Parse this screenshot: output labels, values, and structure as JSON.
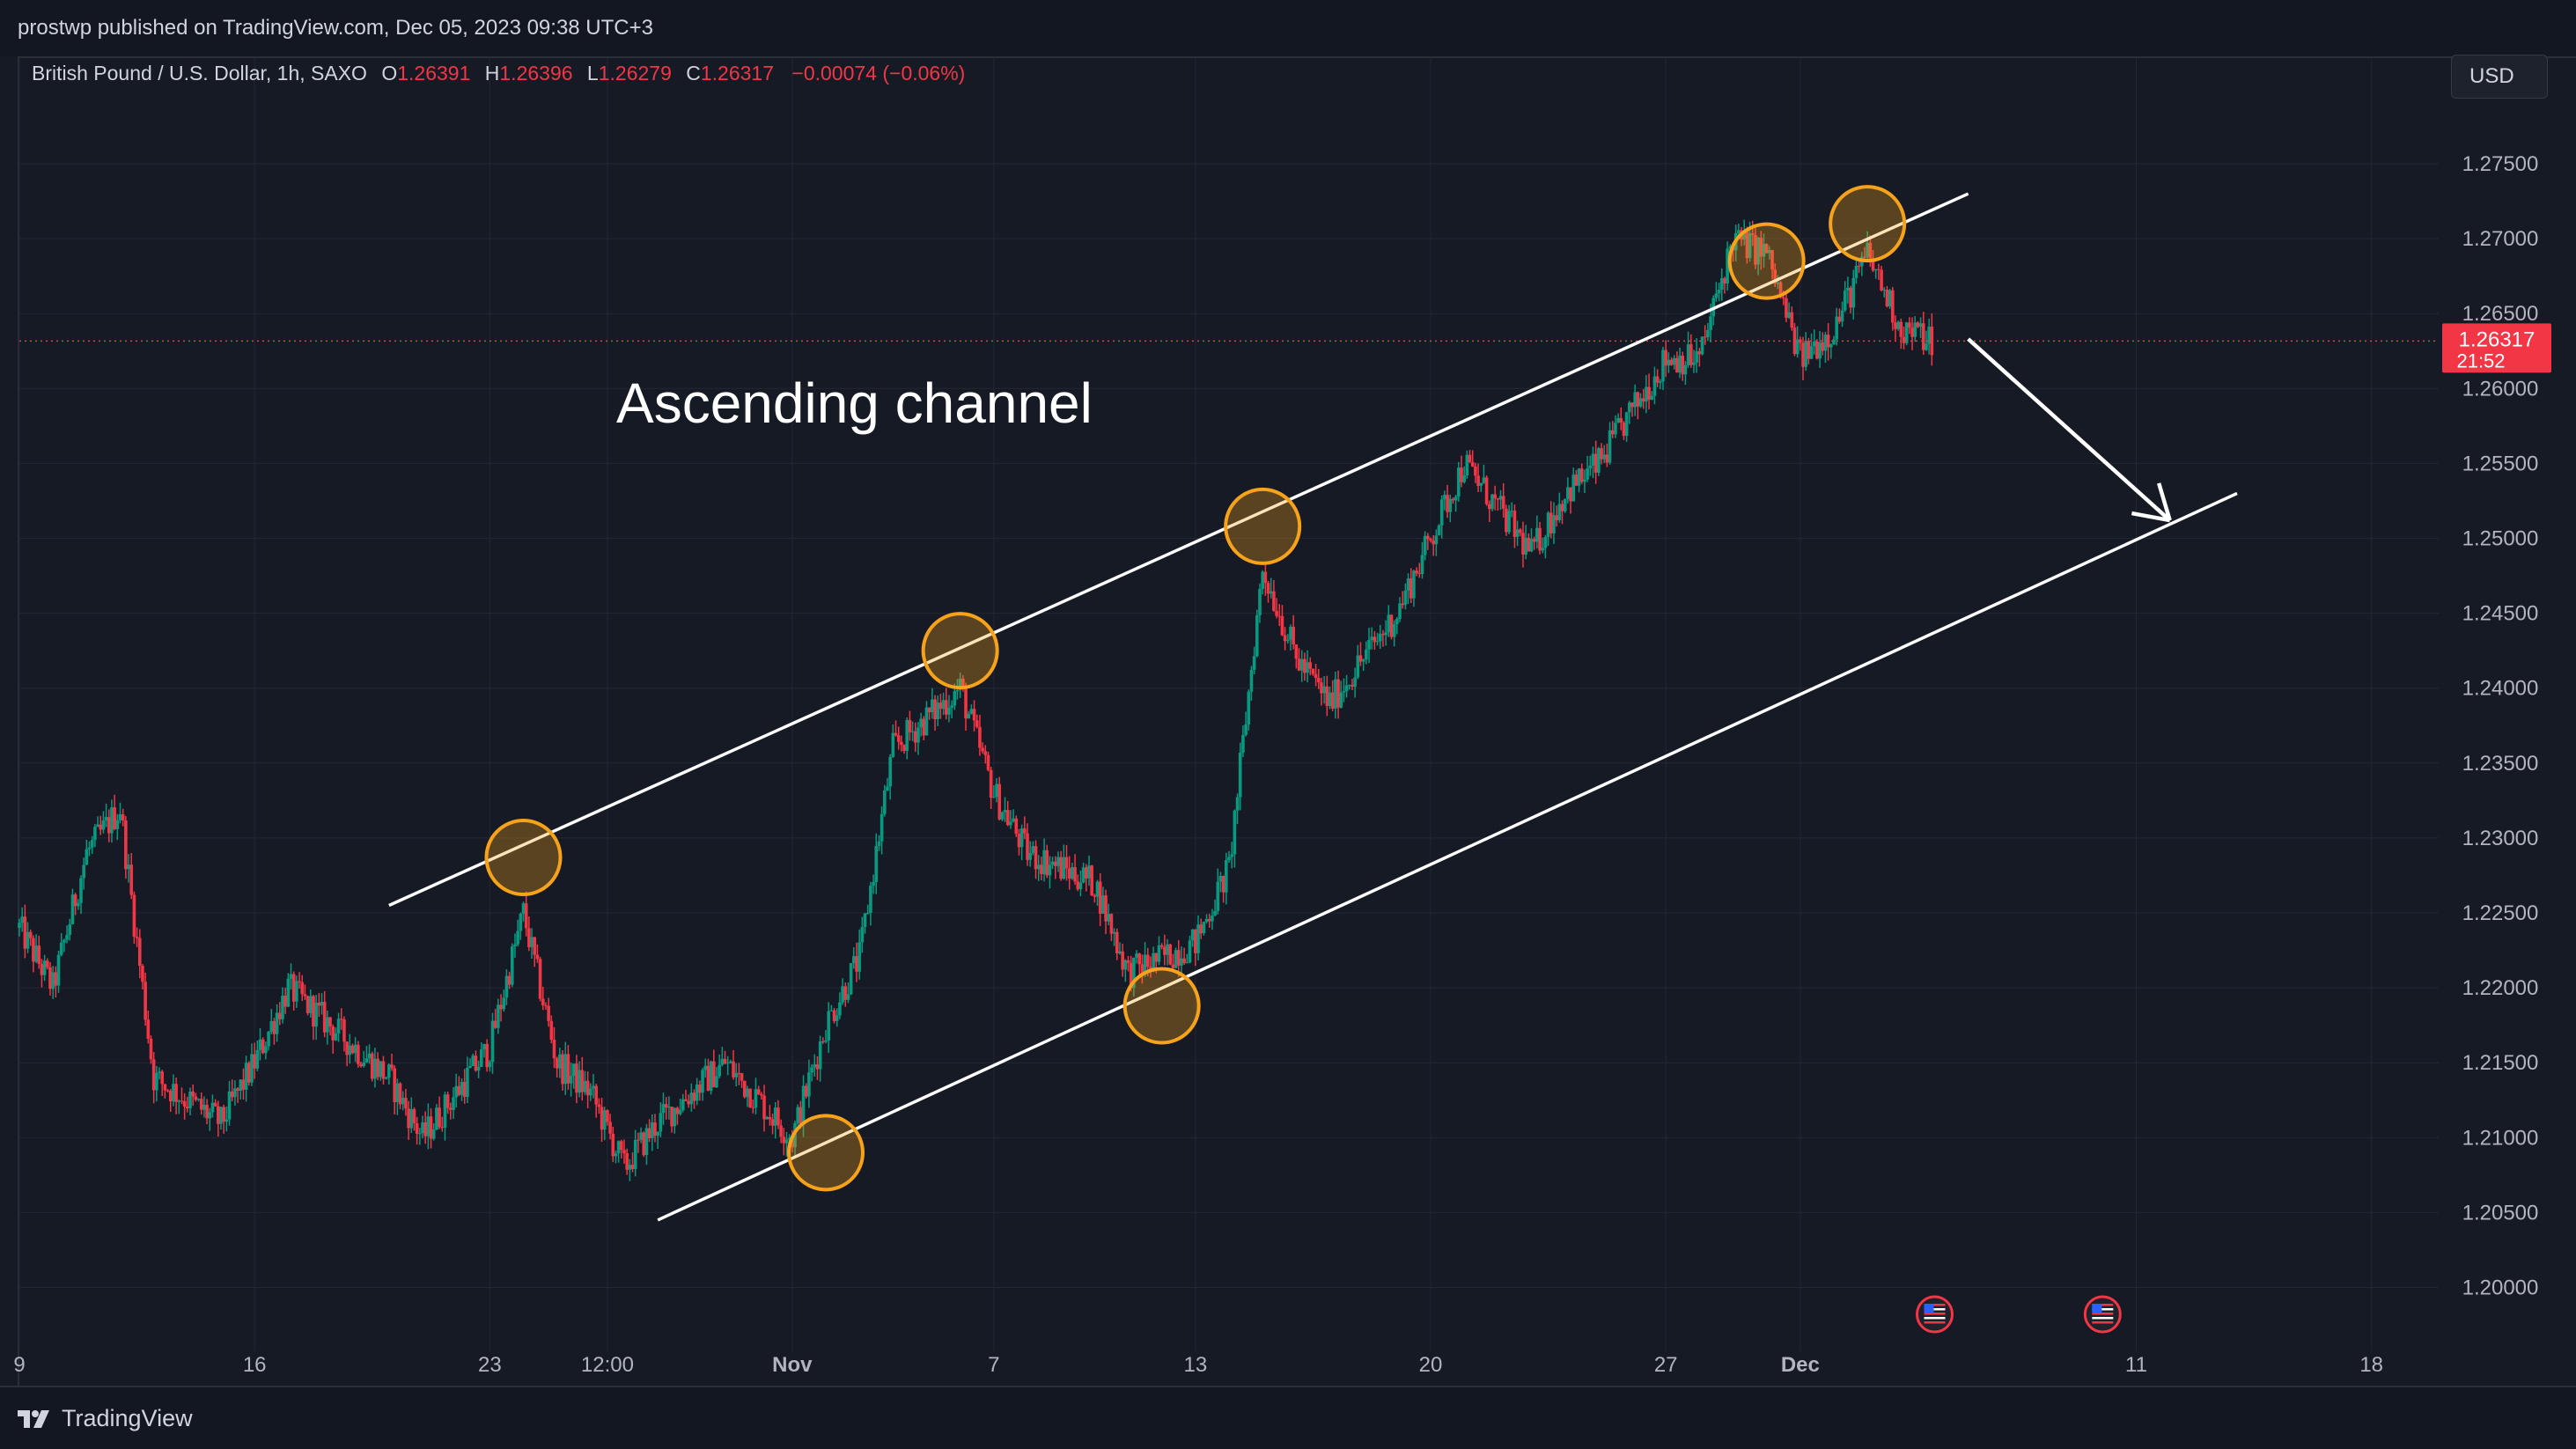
{
  "header": {
    "published_text": "prostwp published on TradingView.com, Dec 05, 2023 09:38 UTC+3"
  },
  "legend": {
    "symbol": "British Pound / U.S. Dollar, 1h, SAXO",
    "open_label": "O",
    "open_value": "1.26391",
    "high_label": "H",
    "high_value": "1.26396",
    "low_label": "L",
    "low_value": "1.26279",
    "close_label": "C",
    "close_value": "1.26317",
    "change": "−0.00074 (−0.06%)"
  },
  "currency_button": {
    "label": "USD"
  },
  "price_tag": {
    "price": "1.26317",
    "countdown": "21:52"
  },
  "footer": {
    "brand": "TradingView"
  },
  "colors": {
    "background": "#161a25",
    "up": "#089981",
    "down": "#f23645",
    "annotation_circle": "#f7a21b",
    "channel_line": "#ffffff"
  },
  "chart_data": {
    "type": "candlestick",
    "title": "",
    "xlabel": "",
    "ylabel": "",
    "x_range": [
      "2023-10-09",
      "2023-12-20"
    ],
    "ylim": [
      1.195,
      1.28
    ],
    "y_ticks": [
      "1.27500",
      "1.27000",
      "1.26500",
      "1.26000",
      "1.25500",
      "1.25000",
      "1.24500",
      "1.24000",
      "1.23500",
      "1.23000",
      "1.22500",
      "1.22000",
      "1.21500",
      "1.21000",
      "1.20500",
      "1.20000"
    ],
    "x_ticks": [
      {
        "label": "9",
        "date": "2023-10-09"
      },
      {
        "label": "16",
        "date": "2023-10-16"
      },
      {
        "label": "23",
        "date": "2023-10-23"
      },
      {
        "label": "12:00",
        "date": "2023-10-26T12:00"
      },
      {
        "label": "Nov",
        "date": "2023-11-01",
        "bold": true
      },
      {
        "label": "7",
        "date": "2023-11-07"
      },
      {
        "label": "13",
        "date": "2023-11-13"
      },
      {
        "label": "20",
        "date": "2023-11-20"
      },
      {
        "label": "27",
        "date": "2023-11-27"
      },
      {
        "label": "Dec",
        "date": "2023-12-01",
        "bold": true
      },
      {
        "label": "11",
        "date": "2023-12-11"
      },
      {
        "label": "18",
        "date": "2023-12-18"
      }
    ],
    "grid": true,
    "last_price": 1.26317,
    "price_path": [
      {
        "date": "2023-10-09",
        "price": 1.224
      },
      {
        "date": "2023-10-10",
        "price": 1.22
      },
      {
        "date": "2023-10-11",
        "price": 1.229
      },
      {
        "date": "2023-10-12",
        "price": 1.232
      },
      {
        "date": "2023-10-13",
        "price": 1.214
      },
      {
        "date": "2023-10-15",
        "price": 1.211
      },
      {
        "date": "2023-10-16",
        "price": 1.215
      },
      {
        "date": "2023-10-17",
        "price": 1.22
      },
      {
        "date": "2023-10-19",
        "price": 1.216
      },
      {
        "date": "2023-10-20",
        "price": 1.214
      },
      {
        "date": "2023-10-21",
        "price": 1.21
      },
      {
        "date": "2023-10-23",
        "price": 1.216
      },
      {
        "date": "2023-10-24",
        "price": 1.225
      },
      {
        "date": "2023-10-25",
        "price": 1.215
      },
      {
        "date": "2023-10-26",
        "price": 1.213
      },
      {
        "date": "2023-10-27",
        "price": 1.208
      },
      {
        "date": "2023-10-28",
        "price": 1.211
      },
      {
        "date": "2023-10-30",
        "price": 1.215
      },
      {
        "date": "2023-11-01",
        "price": 1.21
      },
      {
        "date": "2023-11-02",
        "price": 1.2175
      },
      {
        "date": "2023-11-03",
        "price": 1.222
      },
      {
        "date": "2023-11-04",
        "price": 1.236
      },
      {
        "date": "2023-11-06",
        "price": 1.24
      },
      {
        "date": "2023-11-07",
        "price": 1.233
      },
      {
        "date": "2023-11-08",
        "price": 1.229
      },
      {
        "date": "2023-11-10",
        "price": 1.227
      },
      {
        "date": "2023-11-11",
        "price": 1.221
      },
      {
        "date": "2023-11-13",
        "price": 1.223
      },
      {
        "date": "2023-11-14",
        "price": 1.228
      },
      {
        "date": "2023-11-15",
        "price": 1.248
      },
      {
        "date": "2023-11-16",
        "price": 1.242
      },
      {
        "date": "2023-11-17",
        "price": 1.239
      },
      {
        "date": "2023-11-18",
        "price": 1.242
      },
      {
        "date": "2023-11-19",
        "price": 1.245
      },
      {
        "date": "2023-11-20",
        "price": 1.25
      },
      {
        "date": "2023-11-21",
        "price": 1.255
      },
      {
        "date": "2023-11-22",
        "price": 1.252
      },
      {
        "date": "2023-11-23",
        "price": 1.249
      },
      {
        "date": "2023-11-24",
        "price": 1.253
      },
      {
        "date": "2023-11-25",
        "price": 1.255
      },
      {
        "date": "2023-11-27",
        "price": 1.262
      },
      {
        "date": "2023-11-28",
        "price": 1.262
      },
      {
        "date": "2023-11-29",
        "price": 1.27
      },
      {
        "date": "2023-11-30",
        "price": 1.269
      },
      {
        "date": "2023-12-01",
        "price": 1.262
      },
      {
        "date": "2023-12-02",
        "price": 1.264
      },
      {
        "date": "2023-12-03",
        "price": 1.269
      },
      {
        "date": "2023-12-04",
        "price": 1.264
      },
      {
        "date": "2023-12-05",
        "price": 1.2632
      }
    ],
    "annotations": {
      "text_label": "Ascending channel",
      "channel_upper": [
        {
          "date": "2023-10-20",
          "price": 1.2255
        },
        {
          "date": "2023-12-06",
          "price": 1.273
        }
      ],
      "channel_lower": [
        {
          "date": "2023-10-28",
          "price": 1.2045
        },
        {
          "date": "2023-12-14",
          "price": 1.253
        }
      ],
      "touch_points": [
        {
          "date": "2023-10-24",
          "price": 1.2287
        },
        {
          "date": "2023-11-02",
          "price": 1.209
        },
        {
          "date": "2023-11-06",
          "price": 1.2425
        },
        {
          "date": "2023-11-12",
          "price": 1.2188
        },
        {
          "date": "2023-11-15",
          "price": 1.2508
        },
        {
          "date": "2023-11-30",
          "price": 1.2685
        },
        {
          "date": "2023-12-03",
          "price": 1.271
        }
      ],
      "arrow": {
        "from": {
          "date": "2023-12-06",
          "price": 1.2633
        },
        "to": {
          "date": "2023-12-12",
          "price": 1.2512
        }
      },
      "event_markers": [
        {
          "date": "2023-12-05"
        },
        {
          "date": "2023-12-10"
        }
      ]
    }
  }
}
